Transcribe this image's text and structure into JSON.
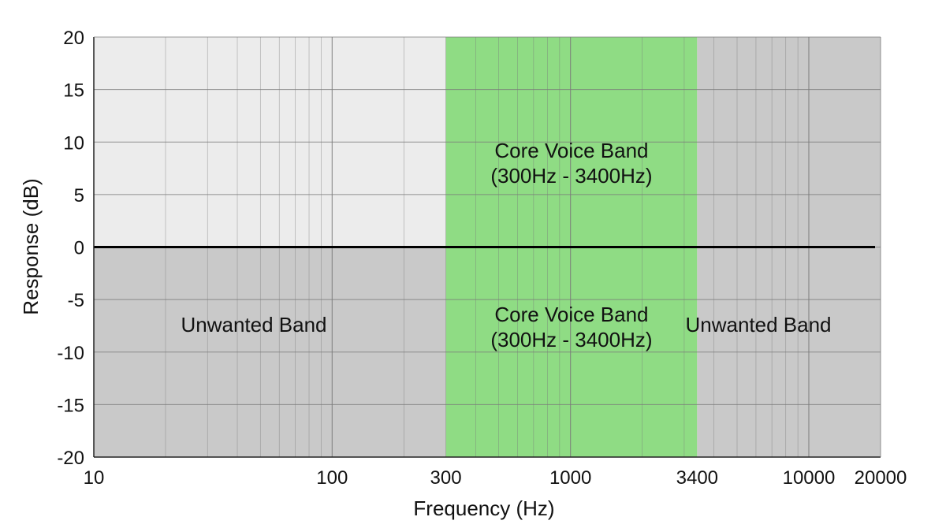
{
  "chart_data": {
    "type": "area",
    "xscale": "log",
    "xlim": [
      10,
      20000
    ],
    "ylim": [
      -20,
      20
    ],
    "xlabel": "Frequency (Hz)",
    "ylabel": "Response (dB)",
    "yticks": [
      20,
      15,
      10,
      5,
      0,
      -5,
      -10,
      -15,
      -20
    ],
    "xticks": [
      {
        "value": 10,
        "label": "10"
      },
      {
        "value": 100,
        "label": "100"
      },
      {
        "value": 300,
        "label": "300"
      },
      {
        "value": 1000,
        "label": "1000"
      },
      {
        "value": 3400,
        "label": "3400"
      },
      {
        "value": 10000,
        "label": "10000"
      },
      {
        "value": 20000,
        "label": "20000"
      }
    ],
    "grid": true,
    "reference_line": {
      "y": 0
    },
    "regions": [
      {
        "x_start": 10,
        "x_end": 300,
        "upper_label": "",
        "lower_label": "Unwanted Band"
      },
      {
        "x_start": 300,
        "x_end": 3400,
        "upper_label": "Core Voice Band",
        "upper_label_2": "(300Hz - 3400Hz)",
        "lower_label": "Core Voice Band",
        "lower_label_2": "(300Hz - 3400Hz)"
      },
      {
        "x_start": 3400,
        "x_end": 20000,
        "upper_label": "",
        "lower_label": "Unwanted Band"
      }
    ],
    "colors": {
      "upper_unwanted": "#ececec",
      "lower_unwanted": "#c9c9c9",
      "voice_band": "#8fdc84",
      "grid": "#7a7a7a",
      "zero_line": "#000000"
    }
  }
}
